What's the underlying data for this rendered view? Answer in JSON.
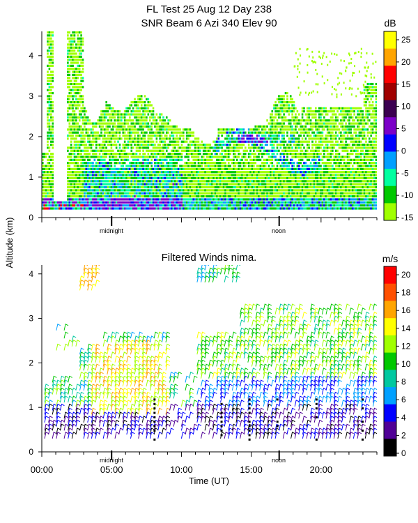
{
  "header": {
    "title_line1": "FL Test  25 Aug 12 Day 238",
    "title_line2": "SNR Beam 6 Azi 340 Elev 90"
  },
  "shared": {
    "ylabel": "Altitude (km)",
    "xlabel": "Time (UT)",
    "midnight_label": "midnight",
    "noon_label": "noon",
    "x_tick_labels": [
      "00:00",
      "05:00",
      "10:00",
      "15:00",
      "20:00"
    ]
  },
  "chart_data": [
    {
      "type": "heatmap",
      "title": "",
      "colorbar_unit": "dB",
      "colorbar_ticks": [
        "25",
        "20",
        "15",
        "10",
        "5",
        "0",
        "-5",
        "-10",
        "-15"
      ],
      "colorbar_colors": [
        "#ffff00",
        "#ffa500",
        "#ff0000",
        "#a00000",
        "#3b0050",
        "#7b00c8",
        "#0000ff",
        "#00a0ff",
        "#00ffa0",
        "#00c800",
        "#a0ff00"
      ],
      "x_range_hours": [
        0,
        24
      ],
      "y_range_km": [
        0,
        4.6
      ],
      "y_ticks": [
        0,
        1,
        2,
        3,
        4
      ],
      "x_axis_labels_shown": false,
      "grid": false
    },
    {
      "type": "scatter",
      "title": "Filtered Winds nima.",
      "colorbar_unit": "m/s",
      "colorbar_ticks": [
        "20",
        "18",
        "16",
        "14",
        "12",
        "10",
        "8",
        "6",
        "4",
        "2",
        "0"
      ],
      "colorbar_colors": [
        "#ff0000",
        "#ff5000",
        "#ffa500",
        "#ffff00",
        "#a0ff00",
        "#00c800",
        "#00c8a0",
        "#00a0ff",
        "#0000ff",
        "#500096",
        "#000000"
      ],
      "x_range_hours": [
        0,
        24
      ],
      "y_range_km": [
        0,
        4.2
      ],
      "y_ticks": [
        0,
        1,
        2,
        3,
        4
      ],
      "grid": false
    }
  ]
}
